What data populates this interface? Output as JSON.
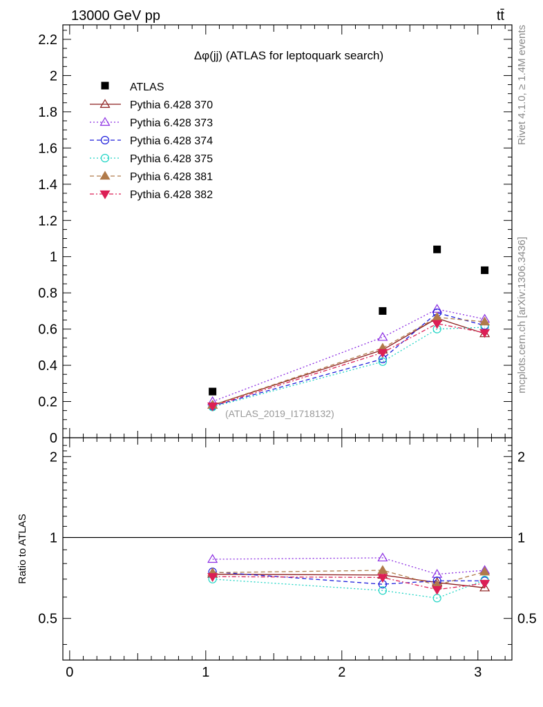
{
  "header": {
    "energy_label": "13000 GeV pp",
    "process_label": "tt̄"
  },
  "side_labels": {
    "rivet": "Rivet 4.1.0, ≥ 1.4M events",
    "mcplots": "mcplots.cern.ch [arXiv:1306.3436]"
  },
  "chart_data": {
    "type": "line",
    "title": "Δφ(jj) (ATLAS for leptoquark search)",
    "watermark": "(ATLAS_2019_I1718132)",
    "x": [
      1.05,
      2.3,
      2.7,
      3.05
    ],
    "xlim": [
      -0.05,
      3.25
    ],
    "xticks": [
      "0",
      "1",
      "2",
      "3"
    ],
    "main": {
      "ylim": [
        0,
        2.28
      ],
      "yticks": [
        "0",
        "0.2",
        "0.4",
        "0.6",
        "0.8",
        "1",
        "1.2",
        "1.4",
        "1.6",
        "1.8",
        "2",
        "2.2"
      ]
    },
    "ratio": {
      "ylabel": "Ratio to ATLAS",
      "ylim": [
        0.35,
        2.35
      ],
      "log": true,
      "yticks": [
        "0.5",
        "1",
        "2"
      ]
    },
    "data": {
      "name": "ATLAS",
      "values": [
        0.255,
        0.7,
        1.04,
        0.925
      ]
    },
    "series": [
      {
        "name": "Pythia 6.428 370",
        "color": "#8b1a1a",
        "dash": "",
        "marker": "triangle-open",
        "values": [
          0.18,
          0.485,
          0.66,
          0.575
        ],
        "ratio": [
          0.73,
          0.725,
          0.68,
          0.65
        ]
      },
      {
        "name": "Pythia 6.428 373",
        "color": "#8a2be2",
        "dash": "2,3",
        "marker": "triangle-open",
        "values": [
          0.2,
          0.555,
          0.71,
          0.655
        ],
        "ratio": [
          0.83,
          0.84,
          0.73,
          0.755
        ]
      },
      {
        "name": "Pythia 6.428 374",
        "color": "#1a1adb",
        "dash": "6,4",
        "marker": "circle-open",
        "values": [
          0.175,
          0.435,
          0.69,
          0.62
        ],
        "ratio": [
          0.745,
          0.67,
          0.69,
          0.69
        ]
      },
      {
        "name": "Pythia 6.428 375",
        "color": "#1dd4c4",
        "dash": "2,3",
        "marker": "circle-open",
        "values": [
          0.17,
          0.42,
          0.6,
          0.61
        ],
        "ratio": [
          0.7,
          0.635,
          0.595,
          0.695
        ]
      },
      {
        "name": "Pythia 6.428 381",
        "color": "#b07a4a",
        "dash": "6,4",
        "marker": "triangle",
        "values": [
          0.18,
          0.495,
          0.665,
          0.64
        ],
        "ratio": [
          0.74,
          0.755,
          0.665,
          0.745
        ]
      },
      {
        "name": "Pythia 6.428 382",
        "color": "#dc1f55",
        "dash": "6,3,2,3",
        "marker": "triangle-down",
        "values": [
          0.175,
          0.47,
          0.63,
          0.58
        ],
        "ratio": [
          0.715,
          0.71,
          0.64,
          0.675
        ]
      }
    ]
  }
}
